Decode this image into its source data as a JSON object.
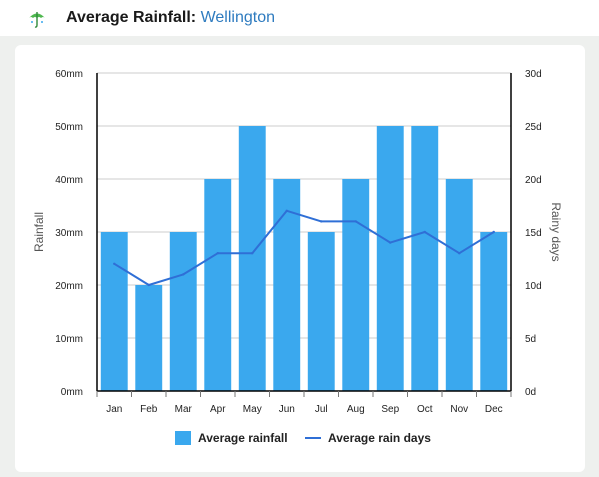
{
  "header": {
    "title_prefix": "Average Rainfall:",
    "city": "Wellington",
    "icon": "umbrella-icon"
  },
  "chart_data": {
    "type": "bar",
    "categories": [
      "Jan",
      "Feb",
      "Mar",
      "Apr",
      "May",
      "Jun",
      "Jul",
      "Aug",
      "Sep",
      "Oct",
      "Nov",
      "Dec"
    ],
    "series": [
      {
        "name": "Average rainfall",
        "type": "bar",
        "axis": "left",
        "values": [
          30,
          20,
          30,
          40,
          50,
          40,
          30,
          40,
          50,
          50,
          40,
          30
        ]
      },
      {
        "name": "Average rain days",
        "type": "line",
        "axis": "right",
        "values": [
          12,
          10,
          11,
          13,
          13,
          17,
          16,
          16,
          14,
          15,
          13,
          15
        ]
      }
    ],
    "ylabel": "Rainfall",
    "y2label": "Rainy days",
    "ylim": [
      0,
      60
    ],
    "y2lim": [
      0,
      30
    ],
    "yticks": [
      "0mm",
      "10mm",
      "20mm",
      "30mm",
      "40mm",
      "50mm",
      "60mm"
    ],
    "y2ticks": [
      "0d",
      "5d",
      "10d",
      "15d",
      "20d",
      "25d",
      "30d"
    ],
    "grid": true,
    "legend": "bottom",
    "colors": {
      "bar": "#3aa8ee",
      "line": "#2f6fd6",
      "axis": "#000000",
      "grid": "#cccccc"
    }
  }
}
